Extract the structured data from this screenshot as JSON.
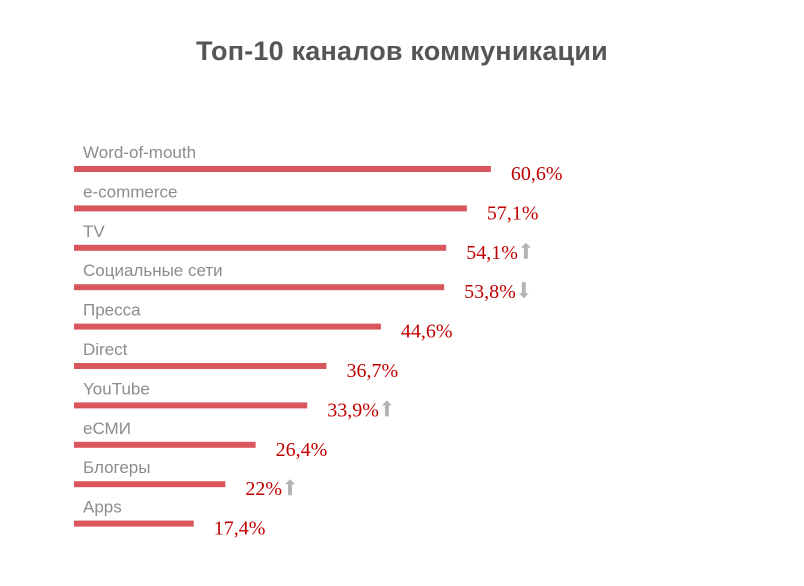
{
  "chart_data": {
    "type": "bar",
    "orientation": "horizontal",
    "title": "Топ-10 каналов коммуникации",
    "xlabel": "",
    "ylabel": "",
    "xlim": [
      0,
      70
    ],
    "unit": "%",
    "colors": {
      "bar": "#d9565c",
      "value_text": "#c00000",
      "category_text": "#8c8c8c",
      "title_text": "#555555",
      "arrow": "#b3b3b3"
    },
    "bars": [
      {
        "category": "Word-of-mouth",
        "value": 60.6,
        "value_label": "60,6%",
        "trend": null
      },
      {
        "category": "e-commerce",
        "value": 57.1,
        "value_label": "57,1%",
        "trend": null
      },
      {
        "category": "TV",
        "value": 54.1,
        "value_label": "54,1%",
        "trend": "up"
      },
      {
        "category": "Социальные сети",
        "value": 53.8,
        "value_label": "53,8%",
        "trend": "down"
      },
      {
        "category": "Пресса",
        "value": 44.6,
        "value_label": "44,6%",
        "trend": null
      },
      {
        "category": "Direct",
        "value": 36.7,
        "value_label": "36,7%",
        "trend": null
      },
      {
        "category": "YouTube",
        "value": 33.9,
        "value_label": "33,9%",
        "trend": "up"
      },
      {
        "category": "еСМИ",
        "value": 26.4,
        "value_label": "26,4%",
        "trend": null
      },
      {
        "category": "Блогеры",
        "value": 22,
        "value_label": "22%",
        "trend": "up"
      },
      {
        "category": "Apps",
        "value": 17.4,
        "value_label": "17,4%",
        "trend": null
      }
    ]
  }
}
